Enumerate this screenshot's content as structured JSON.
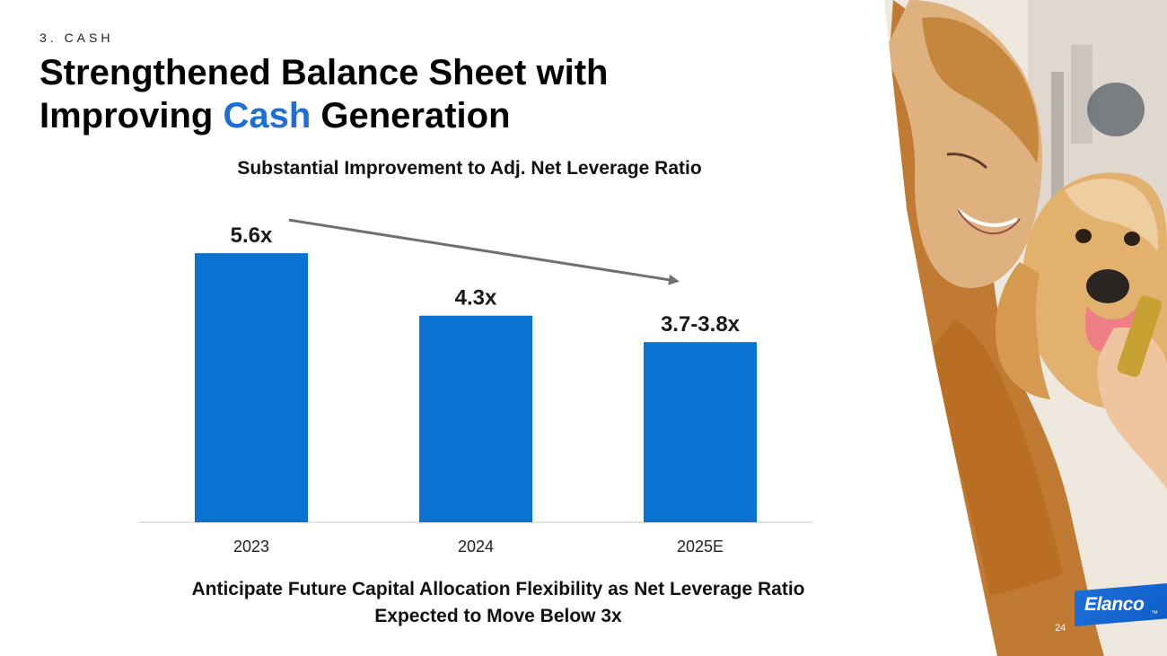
{
  "slide": {
    "section": "3. CASH",
    "title_line1": "Strengthened Balance Sheet with",
    "title_line2_prefix": "Improving ",
    "title_line2_accent": "Cash",
    "title_line2_suffix": " Generation",
    "footnote_line1": "Anticipate Future Capital Allocation Flexibility as Net Leverage Ratio",
    "footnote_line2": "Expected to Move Below 3x",
    "logo": "Elanco",
    "page_number": "24"
  },
  "colors": {
    "accent": "#1c6fd6",
    "bar": "#0a72d1",
    "trend_arrow": "#707070"
  },
  "chart_data": {
    "type": "bar",
    "title": "Substantial Improvement to Adj. Net Leverage Ratio",
    "categories": [
      "2023",
      "2024",
      "2025E"
    ],
    "values": [
      5.6,
      4.3,
      3.75
    ],
    "value_labels": [
      "5.6x",
      "4.3x",
      "3.7-3.8x"
    ],
    "xlabel": "",
    "ylabel": "",
    "ylim": [
      0,
      6.2
    ],
    "grid": false,
    "legend": "none",
    "annotation": "downward trend arrow from 2023 to 2025E"
  }
}
